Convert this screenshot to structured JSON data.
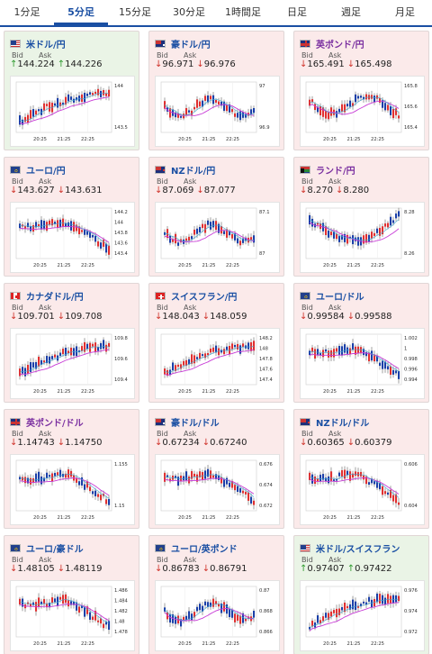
{
  "tabs": [
    {
      "label": "1分足",
      "active": false
    },
    {
      "label": "5分足",
      "active": true
    },
    {
      "label": "15分足",
      "active": false
    },
    {
      "label": "30分足",
      "active": false
    },
    {
      "label": "1時間足",
      "active": false
    },
    {
      "label": "日足",
      "active": false
    },
    {
      "label": "週足",
      "active": false
    },
    {
      "label": "月足",
      "active": false
    }
  ],
  "labels": {
    "bid": "Bid",
    "ask": "Ask"
  },
  "colors": {
    "up": "#2e9a2e",
    "down": "#d0342c",
    "bull_candle": "#e03030",
    "bear_candle": "#1a3fa8",
    "ma_line": "#c83cd6",
    "ma_line2": "#3fa7d0"
  },
  "pairs": [
    {
      "name": "米ドル/円",
      "flag": "us",
      "dir": "up",
      "bid": "144.224",
      "ask": "144.226",
      "x_ticks": [
        "20:25",
        "21:25",
        "22:25"
      ],
      "y_ticks": [
        "144",
        "143.5"
      ],
      "trend": "up"
    },
    {
      "name": "豪ドル/円",
      "flag": "au",
      "dir": "down",
      "bid": "96.971",
      "ask": "96.976",
      "x_ticks": [
        "20:25",
        "21:25",
        "22:25"
      ],
      "y_ticks": [
        "97",
        "96.9"
      ],
      "trend": "flat"
    },
    {
      "name": "英ポンド/円",
      "flag": "gb",
      "dir": "down",
      "bid": "165.491",
      "ask": "165.498",
      "x_ticks": [
        "20:25",
        "21:25",
        "22:25"
      ],
      "y_ticks": [
        "165.8",
        "165.6",
        "165.4"
      ],
      "trend": "flatdown"
    },
    {
      "name": "ユーロ/円",
      "flag": "eu",
      "dir": "down",
      "bid": "143.627",
      "ask": "143.631",
      "x_ticks": [
        "20:25",
        "21:25",
        "22:25"
      ],
      "y_ticks": [
        "144.2",
        "144",
        "143.8",
        "143.6",
        "143.4"
      ],
      "trend": "down"
    },
    {
      "name": "NZドル/円",
      "flag": "nz",
      "dir": "down",
      "bid": "87.069",
      "ask": "87.077",
      "x_ticks": [
        "20:25",
        "21:25",
        "22:25"
      ],
      "y_ticks": [
        "87.1",
        "87"
      ],
      "trend": "flat"
    },
    {
      "name": "ランド/円",
      "flag": "za",
      "dir": "down",
      "bid": "8.270",
      "ask": "8.280",
      "x_ticks": [
        "20:25",
        "21:25",
        "22:25"
      ],
      "y_ticks": [
        "8.28",
        "8.26"
      ],
      "trend": "downup"
    },
    {
      "name": "カナダドル/円",
      "flag": "ca",
      "dir": "down",
      "bid": "109.701",
      "ask": "109.708",
      "x_ticks": [
        "20:25",
        "21:25",
        "22:25"
      ],
      "y_ticks": [
        "109.8",
        "109.6",
        "109.4"
      ],
      "trend": "up"
    },
    {
      "name": "スイスフラン/円",
      "flag": "ch",
      "dir": "down",
      "bid": "148.043",
      "ask": "148.059",
      "x_ticks": [
        "20:25",
        "21:25",
        "22:25"
      ],
      "y_ticks": [
        "148.2",
        "148",
        "147.8",
        "147.6",
        "147.4"
      ],
      "trend": "up"
    },
    {
      "name": "ユーロ/ドル",
      "flag": "eu",
      "dir": "down",
      "bid": "0.99584",
      "ask": "0.99588",
      "x_ticks": [
        "20:25",
        "21:25",
        "22:25"
      ],
      "y_ticks": [
        "1.002",
        "1",
        "0.998",
        "0.996",
        "0.994"
      ],
      "trend": "down"
    },
    {
      "name": "英ポンド/ドル",
      "flag": "gb",
      "dir": "down",
      "bid": "1.14743",
      "ask": "1.14750",
      "x_ticks": [
        "20:25",
        "21:25",
        "22:25"
      ],
      "y_ticks": [
        "1.155",
        "1.15"
      ],
      "trend": "down"
    },
    {
      "name": "豪ドル/ドル",
      "flag": "au",
      "dir": "down",
      "bid": "0.67234",
      "ask": "0.67240",
      "x_ticks": [
        "20:25",
        "21:25",
        "22:25"
      ],
      "y_ticks": [
        "0.676",
        "0.674",
        "0.672"
      ],
      "trend": "down"
    },
    {
      "name": "NZドル/ドル",
      "flag": "nz",
      "dir": "down",
      "bid": "0.60365",
      "ask": "0.60379",
      "x_ticks": [
        "20:25",
        "21:25",
        "22:25"
      ],
      "y_ticks": [
        "0.606",
        "0.604"
      ],
      "trend": "down"
    },
    {
      "name": "ユーロ/豪ドル",
      "flag": "eu",
      "dir": "down",
      "bid": "1.48105",
      "ask": "1.48119",
      "x_ticks": [
        "20:25",
        "21:25",
        "22:25"
      ],
      "y_ticks": [
        "1.486",
        "1.484",
        "1.482",
        "1.48",
        "1.478"
      ],
      "trend": "down"
    },
    {
      "name": "ユーロ/英ポンド",
      "flag": "eu",
      "dir": "down",
      "bid": "0.86783",
      "ask": "0.86791",
      "x_ticks": [
        "20:25",
        "21:25",
        "22:25"
      ],
      "y_ticks": [
        "0.87",
        "0.868",
        "0.866"
      ],
      "trend": "flat"
    },
    {
      "name": "米ドル/スイスフラン",
      "flag": "us",
      "dir": "up",
      "bid": "0.97407",
      "ask": "0.97422",
      "x_ticks": [
        "20:25",
        "21:25",
        "22:25"
      ],
      "y_ticks": [
        "0.976",
        "0.974",
        "0.972"
      ],
      "trend": "up"
    }
  ]
}
